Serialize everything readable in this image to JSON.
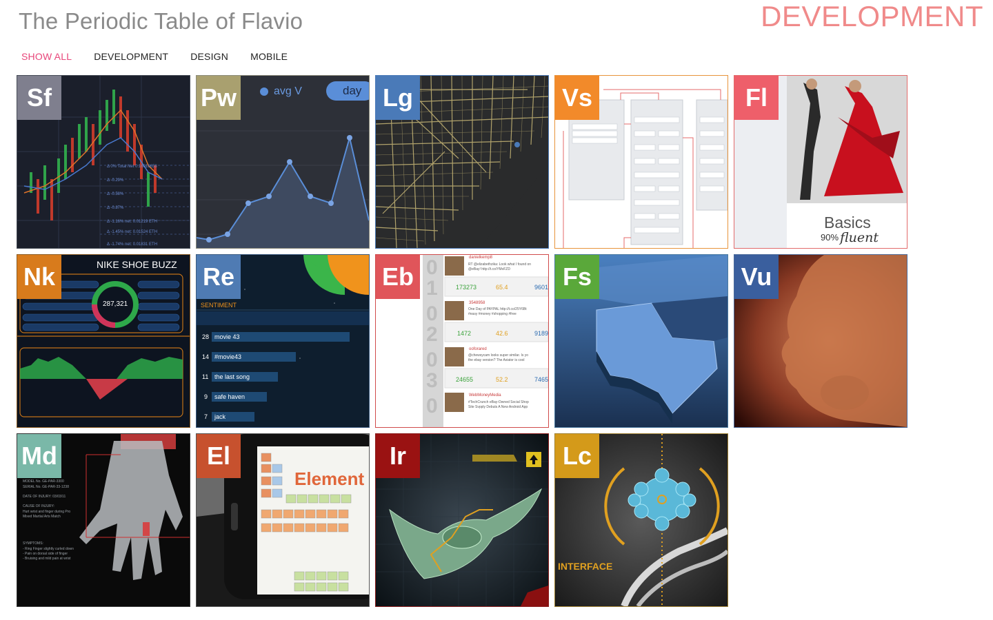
{
  "header": {
    "title": "The Periodic Table of Flavio",
    "current_section": "DEVELOPMENT"
  },
  "filters": [
    {
      "label": "SHOW ALL",
      "active": true
    },
    {
      "label": "DEVELOPMENT",
      "active": false
    },
    {
      "label": "DESIGN",
      "active": false
    },
    {
      "label": "MOBILE",
      "active": false
    }
  ],
  "tiles": [
    {
      "symbol": "Sf",
      "color": "#7f7f8e",
      "border": "#444a55"
    },
    {
      "symbol": "Pw",
      "color": "#a9a06f",
      "border": "#8a8a7a",
      "pill_text": "day",
      "legend_text": "avg V"
    },
    {
      "symbol": "Lg",
      "color": "#4a7ab8",
      "border": "#4a7ab8"
    },
    {
      "symbol": "Vs",
      "color": "#f28a2a",
      "border": "#e8933a"
    },
    {
      "symbol": "Fl",
      "color": "#ee5f6a",
      "border": "#e26a6a",
      "caption": "Basics",
      "subcaption_pct": "90%",
      "subcaption_word": "fluent"
    },
    {
      "symbol": "Nk",
      "color": "#d87b1c",
      "border": "#8a5a20",
      "headline": "NIKE SHOE BUZZ",
      "gauge_value": "287,321"
    },
    {
      "symbol": "Re",
      "color": "#4f7bb3",
      "border": "#3a5a80",
      "section_label": "SENTIMENT",
      "bars": [
        {
          "count": "28",
          "label": "movie 43"
        },
        {
          "count": "14",
          "label": "#movie43"
        },
        {
          "count": "11",
          "label": "the last song"
        },
        {
          "count": "9",
          "label": "safe haven"
        },
        {
          "count": "7",
          "label": "jack"
        }
      ]
    },
    {
      "symbol": "Eb",
      "color": "#e0555a",
      "border": "#d04a4a",
      "rows": [
        {
          "user": "danielkemp8",
          "n1": "173273",
          "n2": "65.4",
          "n3": "9601"
        },
        {
          "user": "3548958",
          "n1": "1472",
          "n2": "42.6",
          "n3": "9189"
        },
        {
          "user": "ooforared",
          "n1": "24655",
          "n2": "52.2",
          "n3": "7465"
        },
        {
          "user": "WebMoneyMedia",
          "n1": "",
          "n2": "",
          "n3": ""
        }
      ]
    },
    {
      "symbol": "Fs",
      "color": "#5aa83a",
      "border": "#4a7aa0"
    },
    {
      "symbol": "Vu",
      "color": "#3a5f9e",
      "border": "#4a6a9a"
    },
    {
      "symbol": "Md",
      "color": "#7ab8a8",
      "border": "#333333"
    },
    {
      "symbol": "El",
      "color": "#c7512e",
      "border": "#555555",
      "headline": "Element"
    },
    {
      "symbol": "Ir",
      "color": "#9a1212",
      "border": "#8a1a1a"
    },
    {
      "symbol": "Lc",
      "color": "#d49a1a",
      "border": "#a08030",
      "caption": "INTERFACE"
    }
  ]
}
